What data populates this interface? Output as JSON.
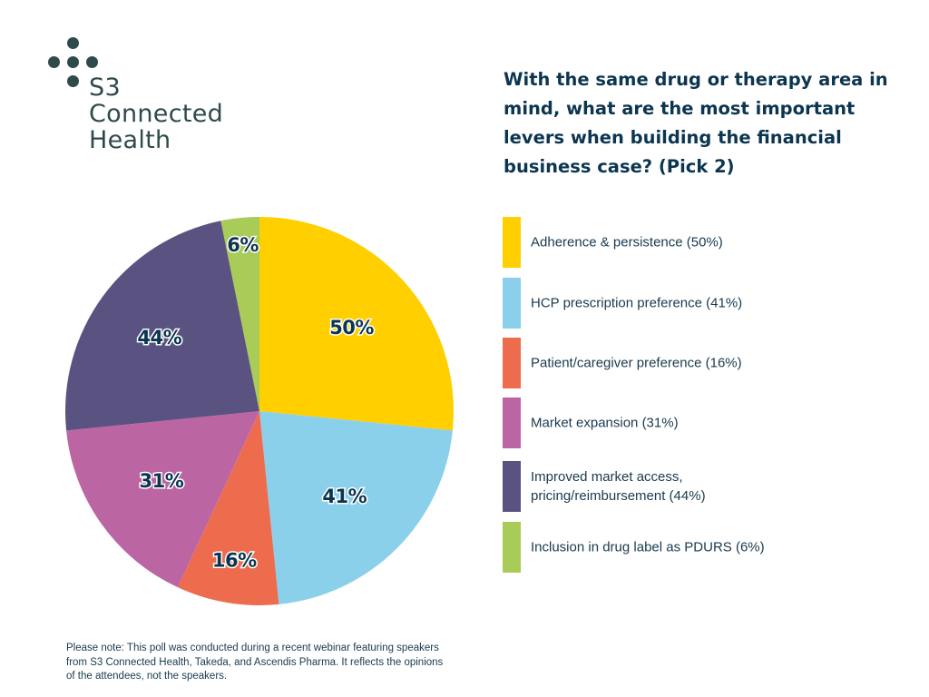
{
  "logo": {
    "icon": "dots-cross-icon",
    "lines": [
      "S3",
      "Connected",
      "Health"
    ]
  },
  "question": "With the same drug or therapy area in mind, what are the most important levers when building the financial business case? (Pick 2)",
  "note": "Please note: This poll was conducted during a recent webinar featuring speakers from S3 Connected Health, Takeda, and Ascendis Pharma. It reflects the opinions of the attendees, not the speakers.",
  "chart_data": {
    "type": "pie",
    "title": "With the same drug or therapy area in mind, what are the most important levers when building the financial business case? (Pick 2)",
    "start": "top",
    "direction": "clockwise",
    "slices": [
      {
        "label": "Adherence & persistence",
        "legend": "Adherence & persistence (50%)",
        "value": 50,
        "display": "50%",
        "color": "#FFCF00"
      },
      {
        "label": "HCP prescription preference",
        "legend": "HCP prescription preference (41%)",
        "value": 41,
        "display": "41%",
        "color": "#8BD0EA"
      },
      {
        "label": "Patient/caregiver preference",
        "legend": "Patient/caregiver preference (16%)",
        "value": 16,
        "display": "16%",
        "color": "#EE6C4E"
      },
      {
        "label": "Market expansion",
        "legend": "Market expansion (31%)",
        "value": 31,
        "display": "31%",
        "color": "#BC65A3"
      },
      {
        "label": "Improved market access, pricing/reimbursement",
        "legend": "Improved market access, pricing/reimbursement (44%)",
        "value": 44,
        "display": "44%",
        "color": "#5A5280"
      },
      {
        "label": "Inclusion in drug label as PDURS",
        "legend": "Inclusion in drug label as PDURS (6%)",
        "value": 6,
        "display": "6%",
        "color": "#A9CB57"
      }
    ],
    "legend_position": "right"
  }
}
